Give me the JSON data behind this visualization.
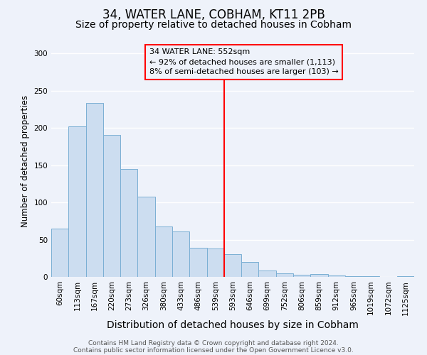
{
  "title": "34, WATER LANE, COBHAM, KT11 2PB",
  "subtitle": "Size of property relative to detached houses in Cobham",
  "xlabel": "Distribution of detached houses by size in Cobham",
  "ylabel": "Number of detached properties",
  "bar_labels": [
    "60sqm",
    "113sqm",
    "167sqm",
    "220sqm",
    "273sqm",
    "326sqm",
    "380sqm",
    "433sqm",
    "486sqm",
    "539sqm",
    "593sqm",
    "646sqm",
    "699sqm",
    "752sqm",
    "806sqm",
    "859sqm",
    "912sqm",
    "965sqm",
    "1019sqm",
    "1072sqm",
    "1125sqm"
  ],
  "bar_values": [
    65,
    202,
    234,
    191,
    145,
    108,
    68,
    61,
    39,
    38,
    31,
    20,
    9,
    5,
    3,
    4,
    2,
    1,
    1,
    0,
    1
  ],
  "bar_color": "#ccddf0",
  "bar_edge_color": "#7aafd4",
  "vline_x": 9.5,
  "vline_color": "red",
  "annotation_title": "34 WATER LANE: 552sqm",
  "annotation_line1": "← 92% of detached houses are smaller (1,113)",
  "annotation_line2": "8% of semi-detached houses are larger (103) →",
  "annotation_box_color": "red",
  "ylim": [
    0,
    310
  ],
  "yticks": [
    0,
    50,
    100,
    150,
    200,
    250,
    300
  ],
  "footer_line1": "Contains HM Land Registry data © Crown copyright and database right 2024.",
  "footer_line2": "Contains public sector information licensed under the Open Government Licence v3.0.",
  "bg_color": "#eef2fa",
  "grid_color": "#ffffff",
  "title_fontsize": 12,
  "subtitle_fontsize": 10,
  "xlabel_fontsize": 10,
  "ylabel_fontsize": 8.5,
  "tick_fontsize": 7.5,
  "ann_fontsize": 8,
  "footer_fontsize": 6.5
}
